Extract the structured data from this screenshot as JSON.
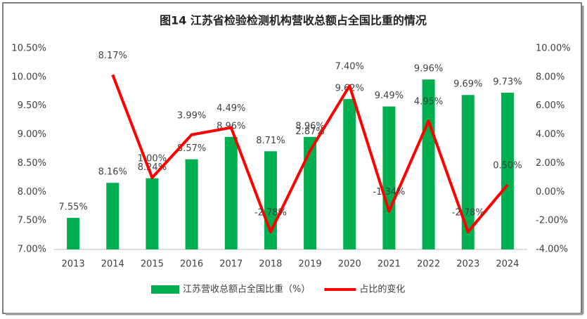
{
  "chart_data": {
    "type": "combo",
    "title": "图14  江苏省检验检测机构营收总额占全国比重的情况",
    "categories": [
      "2013",
      "2014",
      "2015",
      "2016",
      "2017",
      "2018",
      "2019",
      "2020",
      "2021",
      "2022",
      "2023",
      "2024"
    ],
    "series": [
      {
        "name": "江苏营收总额占全国比重（%）",
        "type": "bar",
        "color": "#00b050",
        "values": [
          7.55,
          8.16,
          8.24,
          8.57,
          8.96,
          8.71,
          8.96,
          9.62,
          9.49,
          9.96,
          9.69,
          9.73
        ],
        "value_labels": [
          "7.55%",
          "8.16%",
          "8.24%",
          "8.57%",
          "8.96%",
          "8.71%",
          "8.96%",
          "9.62%",
          "9.49%",
          "9.96%",
          "9.69%",
          "9.73%"
        ]
      },
      {
        "name": "占比的变化",
        "type": "line",
        "axis": "y2",
        "color": "#ff0000",
        "values": [
          null,
          8.17,
          1.0,
          3.99,
          4.49,
          -2.78,
          2.87,
          7.4,
          -1.34,
          4.95,
          -2.78,
          0.5
        ],
        "value_labels": [
          null,
          "8.17%",
          "1.00%",
          "3.99%",
          "4.49%",
          "-2.78%",
          "2.87%",
          "7.40%",
          "-1.34%",
          "4.95%",
          "-2.78%",
          "0.50%"
        ]
      }
    ],
    "ylim": [
      7,
      10.5
    ],
    "yticks": [
      {
        "value": 7,
        "label": "7.00%"
      },
      {
        "value": 7.5,
        "label": "7.50%"
      },
      {
        "value": 8,
        "label": "8.00%"
      },
      {
        "value": 8.5,
        "label": "8.50%"
      },
      {
        "value": 9,
        "label": "9.00%"
      },
      {
        "value": 9.5,
        "label": "9.50%"
      },
      {
        "value": 10,
        "label": "10.00%"
      },
      {
        "value": 10.5,
        "label": "10.50%"
      }
    ],
    "y2lim": [
      -4,
      10
    ],
    "y2ticks": [
      {
        "value": -4,
        "label": "-4.00%"
      },
      {
        "value": -2,
        "label": "-2.00%"
      },
      {
        "value": 0,
        "label": "0.00%"
      },
      {
        "value": 2,
        "label": "2.00%"
      },
      {
        "value": 4,
        "label": "4.00%"
      },
      {
        "value": 6,
        "label": "6.00%"
      },
      {
        "value": 8,
        "label": "8.00%"
      },
      {
        "value": 10,
        "label": "10.00%"
      }
    ],
    "grid": false,
    "legend": "bottom"
  }
}
